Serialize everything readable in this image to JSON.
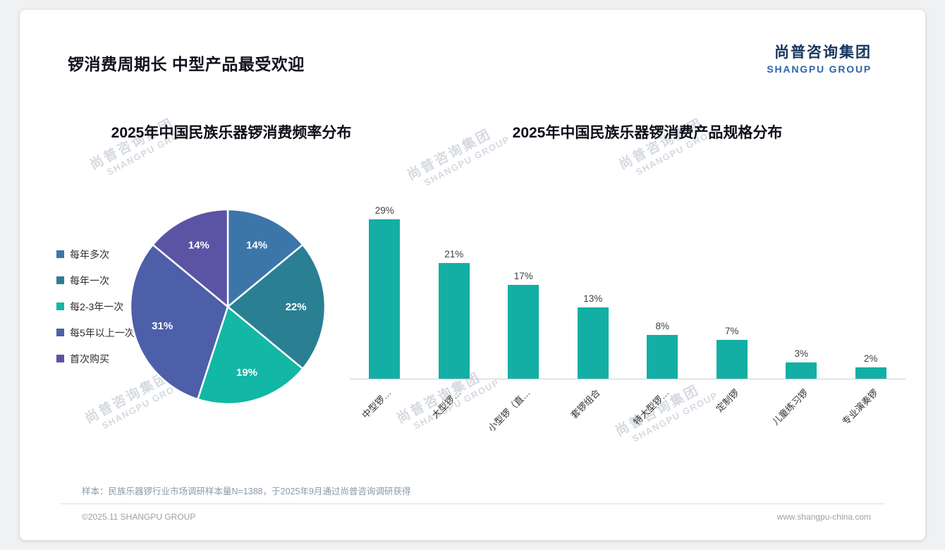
{
  "page": {
    "title": "锣消费周期长 中型产品最受欢迎",
    "logo": {
      "cn": "尚普咨询集团",
      "en": "SHANGPU GROUP"
    },
    "watermark": {
      "cn": "尚普咨询集团",
      "en": "SHANGPU GROUP"
    },
    "footnote": "样本：民族乐器锣行业市场调研样本量N=1388，于2025年9月通过尚普咨询调研获得",
    "copyright": "©2025.11 SHANGPU GROUP",
    "website": "www.shangpu-china.com"
  },
  "chart_data": [
    {
      "type": "pie",
      "title": "2025年中国民族乐器锣消费频率分布",
      "labels": [
        "每年多次",
        "每年一次",
        "每2-3年一次",
        "每5年以上一次",
        "首次购买"
      ],
      "values": [
        14,
        22,
        19,
        31,
        14
      ],
      "unit": "%",
      "colors": [
        "#3c76a9",
        "#2b7f93",
        "#12b7a5",
        "#4d5fa9",
        "#5b54a4"
      ],
      "legend_position": "left",
      "start_angle": -90,
      "direction": "clockwise",
      "label_color": "#ffffff"
    },
    {
      "type": "bar",
      "title": "2025年中国民族乐器锣消费产品规格分布",
      "categories": [
        "中型锣…",
        "大型锣…",
        "小型锣（直…",
        "套锣组合",
        "特大型锣…",
        "定制锣",
        "儿童练习锣",
        "专业演奏锣"
      ],
      "values": [
        29,
        21,
        17,
        13,
        8,
        7,
        3,
        2
      ],
      "unit": "%",
      "bar_color": "#13afa4",
      "ylim": [
        0,
        30
      ],
      "grid": false,
      "value_labels": true,
      "xlabel": "",
      "ylabel": ""
    }
  ]
}
